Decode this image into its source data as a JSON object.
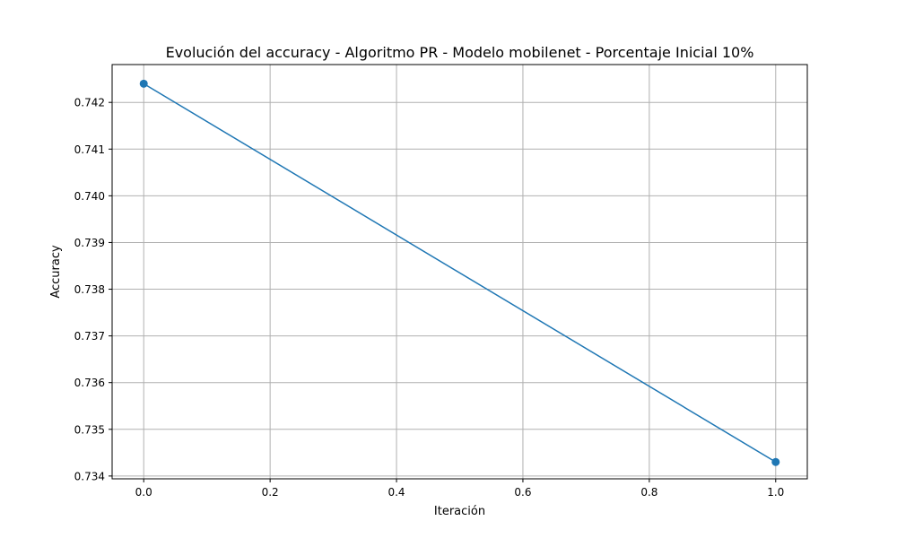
{
  "chart_data": {
    "type": "line",
    "title": "Evolución del accuracy - Algoritmo PR - Modelo mobilenet - Porcentaje Inicial 10%",
    "xlabel": "Iteración",
    "ylabel": "Accuracy",
    "x": [
      0,
      1
    ],
    "series": [
      {
        "values": [
          0.7424,
          0.7343
        ]
      }
    ],
    "xlim": [
      -0.05,
      1.05
    ],
    "ylim": [
      0.73394,
      0.74281
    ],
    "xticks": [
      0.0,
      0.2,
      0.4,
      0.6,
      0.8,
      1.0
    ],
    "xtick_labels": [
      "0.0",
      "0.2",
      "0.4",
      "0.6",
      "0.8",
      "1.0"
    ],
    "yticks": [
      0.734,
      0.735,
      0.736,
      0.737,
      0.738,
      0.739,
      0.74,
      0.741,
      0.742
    ],
    "ytick_labels": [
      "0.734",
      "0.735",
      "0.736",
      "0.737",
      "0.738",
      "0.739",
      "0.740",
      "0.741",
      "0.742"
    ],
    "grid": true,
    "markers": true,
    "colors": {
      "line": "#1f77b4",
      "grid": "#b0b0b0",
      "axes": "#000000"
    }
  }
}
